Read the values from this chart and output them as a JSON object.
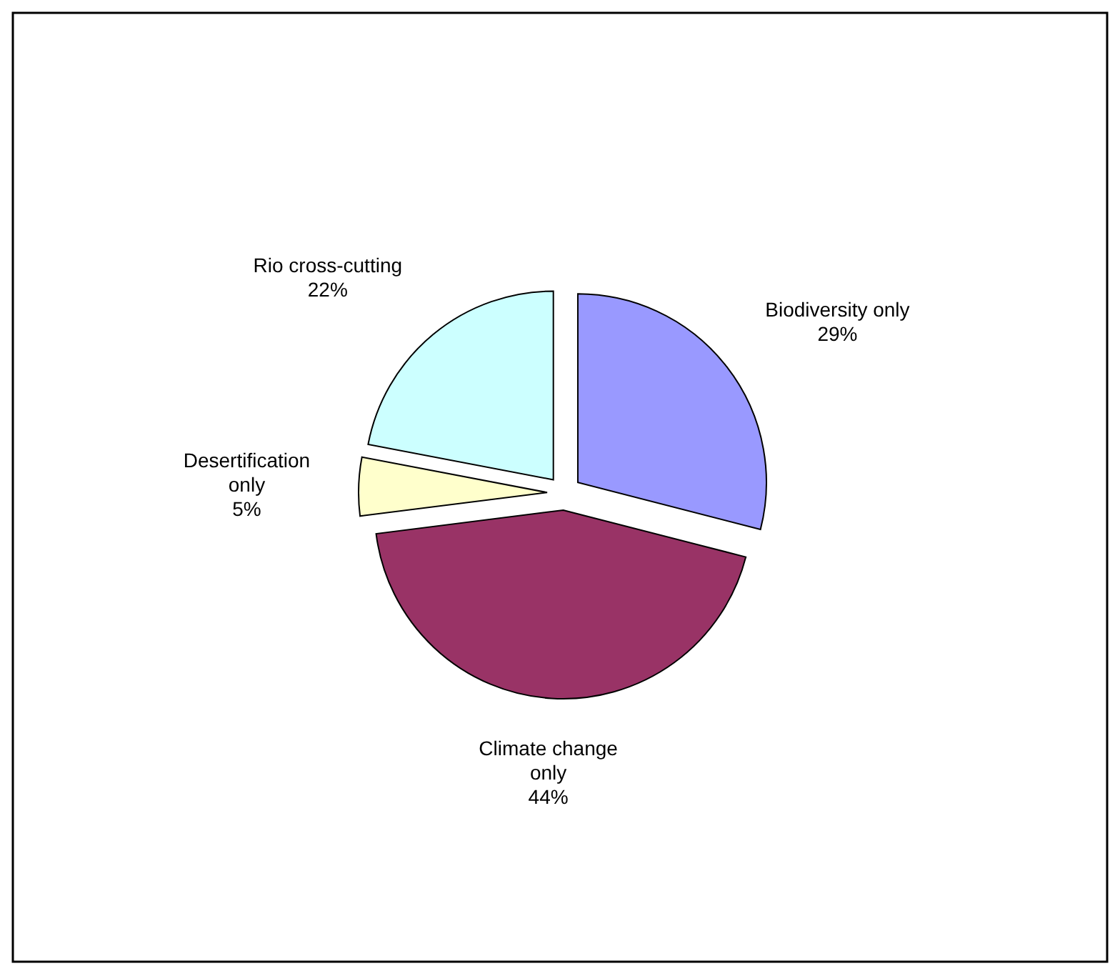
{
  "chart_data": {
    "type": "pie",
    "categories": [
      "Biodiversity only",
      "Climate change only",
      "Desertification only",
      "Rio cross-cutting"
    ],
    "values": [
      29,
      44,
      5,
      22
    ],
    "colors": [
      "#9999ff",
      "#993366",
      "#ffffcc",
      "#ccffff"
    ],
    "value_labels": [
      "29%",
      "44%",
      "5%",
      "22%"
    ]
  }
}
